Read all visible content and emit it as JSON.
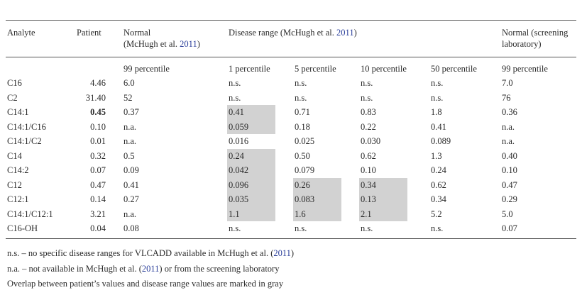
{
  "header": {
    "analyte": "Analyte",
    "patient": "Patient",
    "normal": {
      "label": "Normal",
      "source": "(McHugh et al. ",
      "year": "2011",
      "close": ")"
    },
    "disease": {
      "label": "Disease range (McHugh et al. ",
      "year": "2011",
      "close": ")"
    },
    "screening": {
      "line1": "Normal (screening",
      "line2": "laboratory)"
    }
  },
  "subheaders": [
    "99 percentile",
    "1 percentile",
    "5 percentile",
    "10 percentile",
    "50 percentile",
    "99 percentile"
  ],
  "rows": [
    {
      "analyte": "C16",
      "patient": "4.46",
      "cells": [
        "6.0",
        "n.s.",
        "n.s.",
        "n.s.",
        "n.s.",
        "7.0"
      ],
      "gray": [
        false,
        false,
        false,
        false,
        false,
        false
      ]
    },
    {
      "analyte": "C2",
      "patient": "31.40",
      "cells": [
        "52",
        "n.s.",
        "n.s.",
        "n.s.",
        "n.s.",
        "76"
      ],
      "gray": [
        false,
        false,
        false,
        false,
        false,
        false
      ]
    },
    {
      "analyte": "C14:1",
      "patient": "0.45",
      "bold": true,
      "cells": [
        "0.37",
        "0.41",
        "0.71",
        "0.83",
        "1.8",
        "0.36"
      ],
      "gray": [
        false,
        true,
        false,
        false,
        false,
        false
      ]
    },
    {
      "analyte": "C14:1/C16",
      "patient": "0.10",
      "cells": [
        "n.a.",
        "0.059",
        "0.18",
        "0.22",
        "0.41",
        "n.a."
      ],
      "gray": [
        false,
        true,
        false,
        false,
        false,
        false
      ]
    },
    {
      "analyte": "C14:1/C2",
      "patient": "0.01",
      "cells": [
        "n.a.",
        "0.016",
        "0.025",
        "0.030",
        "0.089",
        "n.a."
      ],
      "gray": [
        false,
        false,
        false,
        false,
        false,
        false
      ]
    },
    {
      "analyte": "C14",
      "patient": "0.32",
      "cells": [
        "0.5",
        "0.24",
        "0.50",
        "0.62",
        "1.3",
        "0.40"
      ],
      "gray": [
        false,
        true,
        false,
        false,
        false,
        false
      ]
    },
    {
      "analyte": "C14:2",
      "patient": "0.07",
      "cells": [
        "0.09",
        "0.042",
        "0.079",
        "0.10",
        "0.24",
        "0.10"
      ],
      "gray": [
        false,
        true,
        false,
        false,
        false,
        false
      ]
    },
    {
      "analyte": "C12",
      "patient": "0.47",
      "cells": [
        "0.41",
        "0.096",
        "0.26",
        "0.34",
        "0.62",
        "0.47"
      ],
      "gray": [
        false,
        true,
        true,
        true,
        false,
        false
      ]
    },
    {
      "analyte": "C12:1",
      "patient": "0.14",
      "cells": [
        "0.27",
        "0.035",
        "0.083",
        "0.13",
        "0.34",
        "0.29"
      ],
      "gray": [
        false,
        true,
        true,
        true,
        false,
        false
      ]
    },
    {
      "analyte": "C14:1/C12:1",
      "patient": "3.21",
      "cells": [
        "n.a.",
        "1.1",
        "1.6",
        "2.1",
        "5.2",
        "5.0"
      ],
      "gray": [
        false,
        true,
        true,
        true,
        false,
        false
      ]
    },
    {
      "analyte": "C16-OH",
      "patient": "0.04",
      "cells": [
        "0.08",
        "n.s.",
        "n.s.",
        "n.s.",
        "n.s.",
        "0.07"
      ],
      "gray": [
        false,
        false,
        false,
        false,
        false,
        false
      ]
    }
  ],
  "footnotes": [
    {
      "pre": "n.s. – no specific disease ranges for VLCADD available in McHugh et al. (",
      "year": "2011",
      "post": ")"
    },
    {
      "pre": "n.a. – not available in McHugh et al. (",
      "year": "2011",
      "post": ") or from the screening laboratory"
    },
    {
      "pre": "Overlap between patient’s values and disease range values are marked in gray"
    }
  ]
}
